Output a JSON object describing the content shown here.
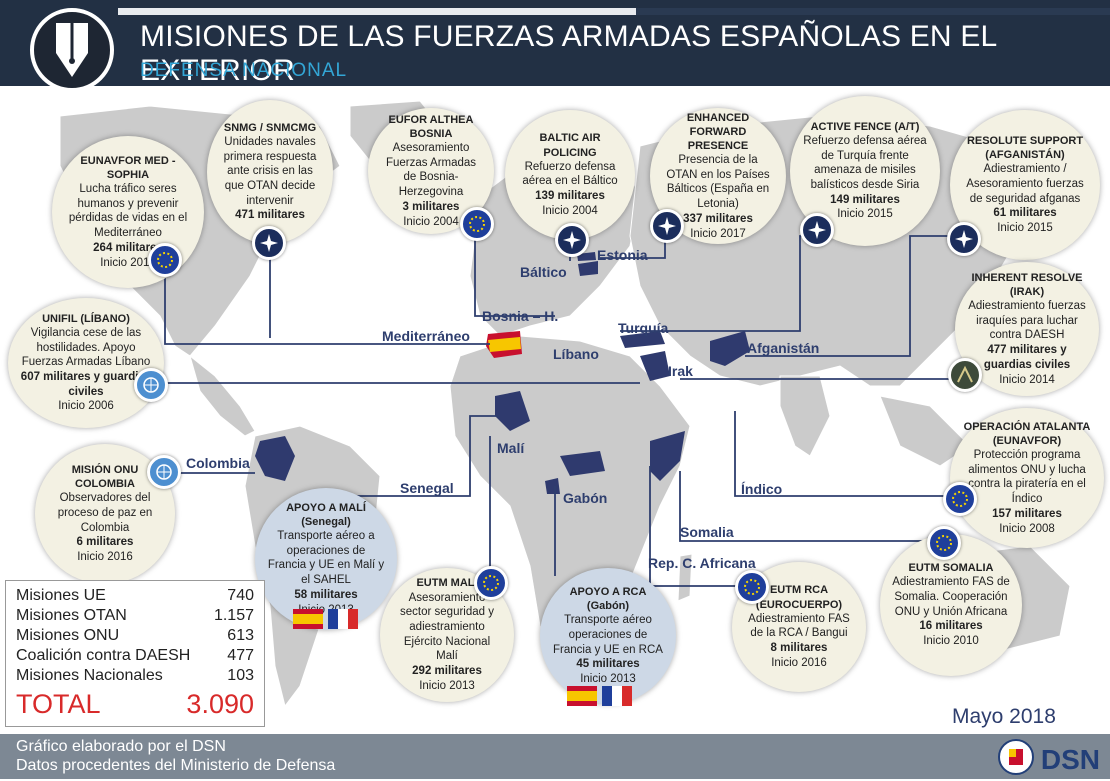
{
  "header": {
    "title": "MISIONES DE LAS FUERZAS ARMADAS ESPAÑOLAS EN EL EXTERIOR",
    "subtitle": "DEFENSA NACIONAL"
  },
  "missions": [
    {
      "title": "EUNAVFOR MED - SOPHIA",
      "desc": "Lucha tráfico seres humanos y prevenir pérdidas de vidas en el Mediterráneo",
      "military": "264 militares",
      "start": "Inicio 2015",
      "badge": "eu"
    },
    {
      "title": "SNMG / SNMCMG",
      "desc": "Unidades navales primera respuesta ante crisis en las que OTAN decide intervenir",
      "military": "471 militares",
      "start": "",
      "badge": "nato"
    },
    {
      "title": "EUFOR ALTHEA BOSNIA",
      "desc": "Asesoramiento Fuerzas Armadas de Bosnia-Herzegovina",
      "military": "3 militares",
      "start": "Inicio 2004",
      "badge": "eu"
    },
    {
      "title": "BALTIC AIR POLICING",
      "desc": "Refuerzo defensa aérea en el Báltico",
      "military": "139 militares",
      "start": "Inicio 2004",
      "badge": "nato"
    },
    {
      "title": "ENHANCED FORWARD PRESENCE",
      "desc": "Presencia de la OTAN en los Países Bálticos (España en Letonia)",
      "military": "337 militares",
      "start": "Inicio 2017",
      "badge": "nato"
    },
    {
      "title": "ACTIVE FENCE (A/T)",
      "desc": "Refuerzo defensa aérea de Turquía frente amenaza de misiles balísticos desde Siria",
      "military": "149 militares",
      "start": "Inicio 2015",
      "badge": "nato"
    },
    {
      "title": "RESOLUTE SUPPORT (AFGANISTÁN)",
      "desc": "Adiestramiento / Asesoramiento fuerzas de seguridad afganas",
      "military": "61 militares",
      "start": "Inicio 2015",
      "badge": "nato"
    },
    {
      "title": "UNIFIL (LÍBANO)",
      "desc": "Vigilancia cese de las hostilidades. Apoyo Fuerzas Armadas Líbano",
      "military": "607 militares y guardias civiles",
      "start": "Inicio 2006",
      "badge": "un"
    },
    {
      "title": "INHERENT RESOLVE (IRAK)",
      "desc": "Adiestramiento fuerzas iraquíes para luchar contra DAESH",
      "military": "477 militares y guardias civiles",
      "start": "Inicio 2014",
      "badge": "iq"
    },
    {
      "title": "MISIÓN ONU COLOMBIA",
      "desc": "Observadores del proceso de paz en Colombia",
      "military": "6 militares",
      "start": "Inicio 2016",
      "badge": "un"
    },
    {
      "title": "OPERACIÓN ATALANTA (EUNAVFOR)",
      "desc": "Protección programa alimentos ONU y lucha contra la piratería en el Índico",
      "military": "157 militares",
      "start": "Inicio 2008",
      "badge": "eu"
    },
    {
      "title": "APOYO A MALÍ (Senegal)",
      "desc": "Transporte aéreo a operaciones de Francia y UE en Malí y el SAHEL",
      "military": "58 militares",
      "start": "Inicio 2013",
      "badge": ""
    },
    {
      "title": "EUTM MALI",
      "desc": "Asesoramiento sector seguridad y adiestramiento Ejército Nacional Malí",
      "military": "292 militares",
      "start": "Inicio 2013",
      "badge": "eu"
    },
    {
      "title": "APOYO A RCA (Gabón)",
      "desc": "Transporte aéreo operaciones de Francia y UE en RCA",
      "military": "45 militares",
      "start": "Inicio 2013",
      "badge": ""
    },
    {
      "title": "EUTM RCA (EUROCUERPO)",
      "desc": "Adiestramiento FAS de la RCA / Bangui",
      "military": "8 militares",
      "start": "Inicio 2016",
      "badge": "eu"
    },
    {
      "title": "EUTM SOMALIA",
      "desc": "Adiestramiento FAS de Somalia. Cooperación ONU y Unión Africana",
      "military": "16 militares",
      "start": "Inicio 2010",
      "badge": "eu"
    }
  ],
  "locations": {
    "mediterraneo": "Mediterráneo",
    "bosnia": "Bosnia – H.",
    "baltico": "Báltico",
    "estonia": "Estonia",
    "turquia": "Turquía",
    "libano": "Líbano",
    "irak": "Irak",
    "afganistan": "Afganistán",
    "colombia": "Colombia",
    "senegal": "Senegal",
    "mali": "Malí",
    "gabon": "Gabón",
    "indico": "Índico",
    "somalia": "Somalia",
    "rca": "Rep. C. Africana"
  },
  "stats": {
    "rows": [
      {
        "label": "Misiones UE",
        "value": "740"
      },
      {
        "label": "Misiones OTAN",
        "value": "1.157"
      },
      {
        "label": "Misiones ONU",
        "value": "613"
      },
      {
        "label": "Coalición contra DAESH",
        "value": "477"
      },
      {
        "label": "Misiones Nacionales",
        "value": "103"
      }
    ],
    "total_label": "TOTAL",
    "total_value": "3.090"
  },
  "date": "Mayo  2018",
  "footer": {
    "line1": "Gráfico elaborado por el DSN",
    "line2": "Datos procedentes del Ministerio de Defensa",
    "logo_text": "DSN"
  },
  "colors": {
    "header_bg": "#223044",
    "subtitle": "#33a6d6",
    "land": "#c9c9c9",
    "highlight_country": "#2f3a6e",
    "connector": "#2e3e6e",
    "total_red": "#d82a2a"
  }
}
